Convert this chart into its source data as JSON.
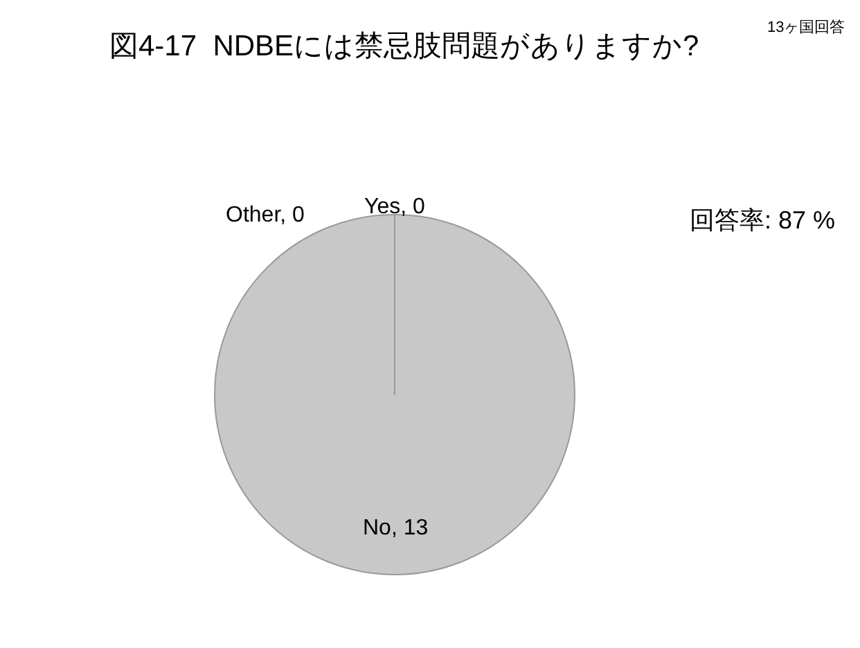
{
  "chart_data": {
    "type": "pie",
    "title": "図4-17  NDBEには禁忌肢問題がありますか?",
    "categories": [
      "Yes",
      "No",
      "Other"
    ],
    "values": [
      0,
      13,
      0
    ],
    "colors": [
      "#c8c8c8",
      "#c8c8c8",
      "#c8c8c8"
    ],
    "value_labels": [
      ", 0",
      ", 13",
      ", 0"
    ],
    "legend": false,
    "annotations": [
      "13ヶ国回答",
      "回答率: 87 %"
    ]
  }
}
